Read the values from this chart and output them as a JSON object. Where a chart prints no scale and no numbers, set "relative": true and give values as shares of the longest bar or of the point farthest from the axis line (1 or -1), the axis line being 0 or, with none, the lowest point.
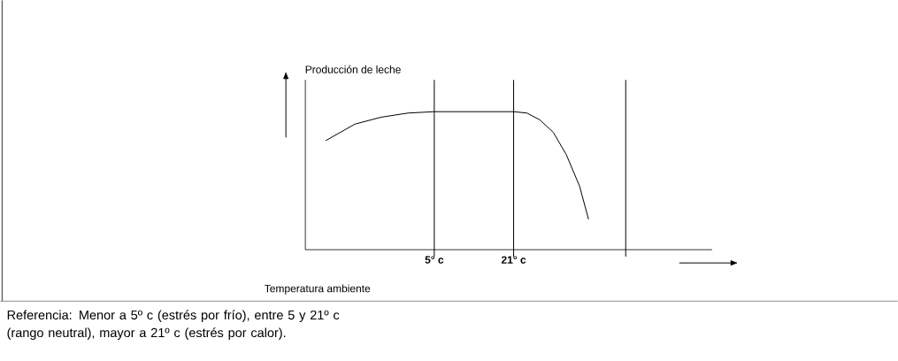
{
  "chart_data": {
    "type": "line",
    "relative": true,
    "xlabel": "Temperatura ambiente",
    "ylabel": "Producción de leche",
    "x": [
      -16.9,
      -11,
      -5.7,
      -0.3,
      5,
      21,
      23.7,
      26.3,
      29,
      31.6,
      34.3,
      36.1
    ],
    "series": [
      {
        "color": "#000000",
        "values": [
          0.79,
          0.91,
          0.96,
          0.99,
          1,
          1,
          0.99,
          0.94,
          0.85,
          0.69,
          0.46,
          0.22
        ]
      }
    ],
    "xlim": [
      -21,
      61
    ],
    "xticks": [
      {
        "value": 5,
        "label": "5° c"
      },
      {
        "value": 21,
        "label": "21° c"
      }
    ],
    "ref_lines": [
      {
        "axis": "x",
        "value": 5
      },
      {
        "axis": "x",
        "value": 21
      },
      {
        "axis": "x",
        "value": 43.6
      }
    ],
    "grid": false,
    "marker": "none",
    "line_style": "solid",
    "annotations": [
      "Referencia: Menor a 5º c (estrés por frío), entre 5 y 21º c (rango neutral), mayor a 21º c (estrés por calor)."
    ]
  }
}
